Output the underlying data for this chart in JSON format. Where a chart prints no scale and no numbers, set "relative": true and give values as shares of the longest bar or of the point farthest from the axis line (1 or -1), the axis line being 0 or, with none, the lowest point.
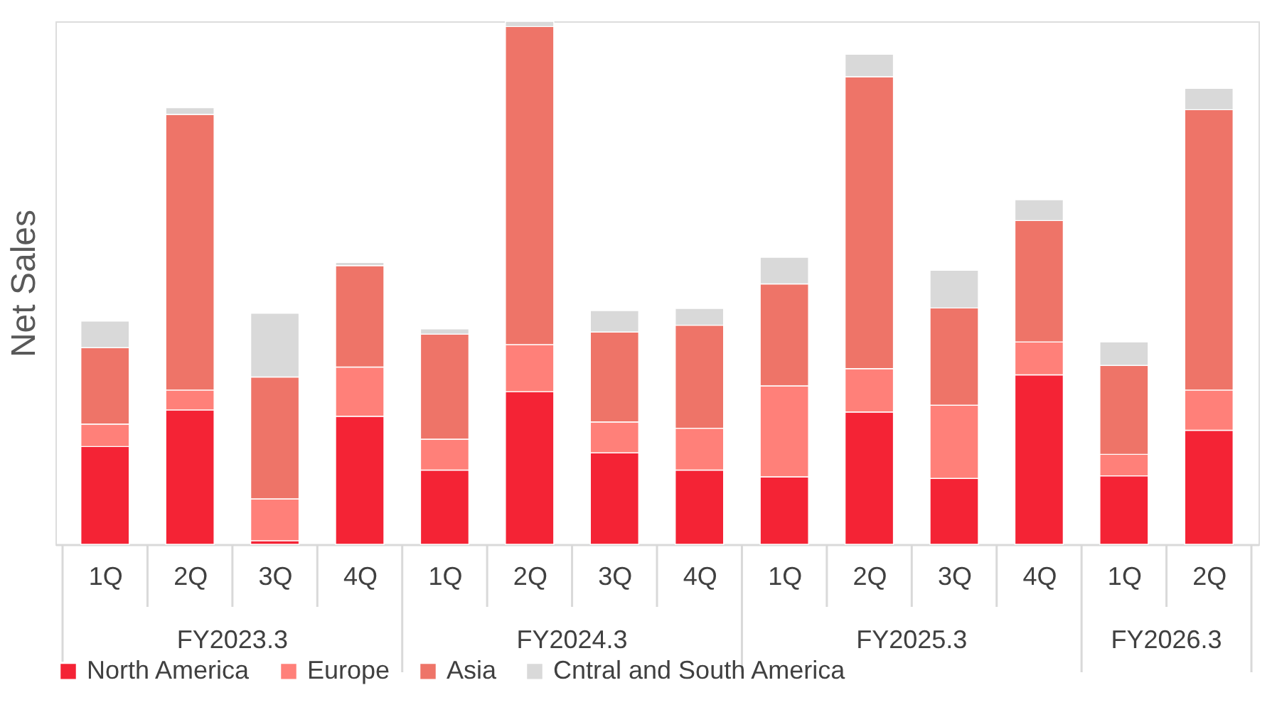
{
  "chart_data": {
    "type": "bar",
    "ylabel": "Net Sales",
    "relative": true,
    "stacked": true,
    "legend": "bottom",
    "categories": [
      "1Q",
      "2Q",
      "3Q",
      "4Q",
      "1Q",
      "2Q",
      "3Q",
      "4Q",
      "1Q",
      "2Q",
      "3Q",
      "4Q",
      "1Q",
      "2Q"
    ],
    "annotations": [
      "FY2023.3",
      "FY2024.3",
      "FY2025.3",
      "FY2026.3"
    ],
    "series": [
      {
        "name": "North America",
        "color": "#f42335",
        "values": [
          0.187,
          0.257,
          0.007,
          0.245,
          0.142,
          0.292,
          0.175,
          0.142,
          0.129,
          0.253,
          0.126,
          0.324,
          0.131,
          0.218
        ]
      },
      {
        "name": "Europe",
        "color": "#ff8079",
        "values": [
          0.043,
          0.038,
          0.08,
          0.094,
          0.059,
          0.09,
          0.059,
          0.08,
          0.174,
          0.083,
          0.14,
          0.063,
          0.041,
          0.077
        ]
      },
      {
        "name": "Asia",
        "color": "#ee7468",
        "values": [
          0.146,
          0.527,
          0.233,
          0.194,
          0.201,
          0.608,
          0.172,
          0.197,
          0.195,
          0.558,
          0.186,
          0.232,
          0.17,
          0.536
        ]
      },
      {
        "name": "Cntral and South America",
        "color": "#d9d9d9",
        "values": [
          0.051,
          0.013,
          0.122,
          0.006,
          0.01,
          0.01,
          0.041,
          0.032,
          0.051,
          0.043,
          0.072,
          0.04,
          0.045,
          0.041
        ]
      }
    ]
  }
}
